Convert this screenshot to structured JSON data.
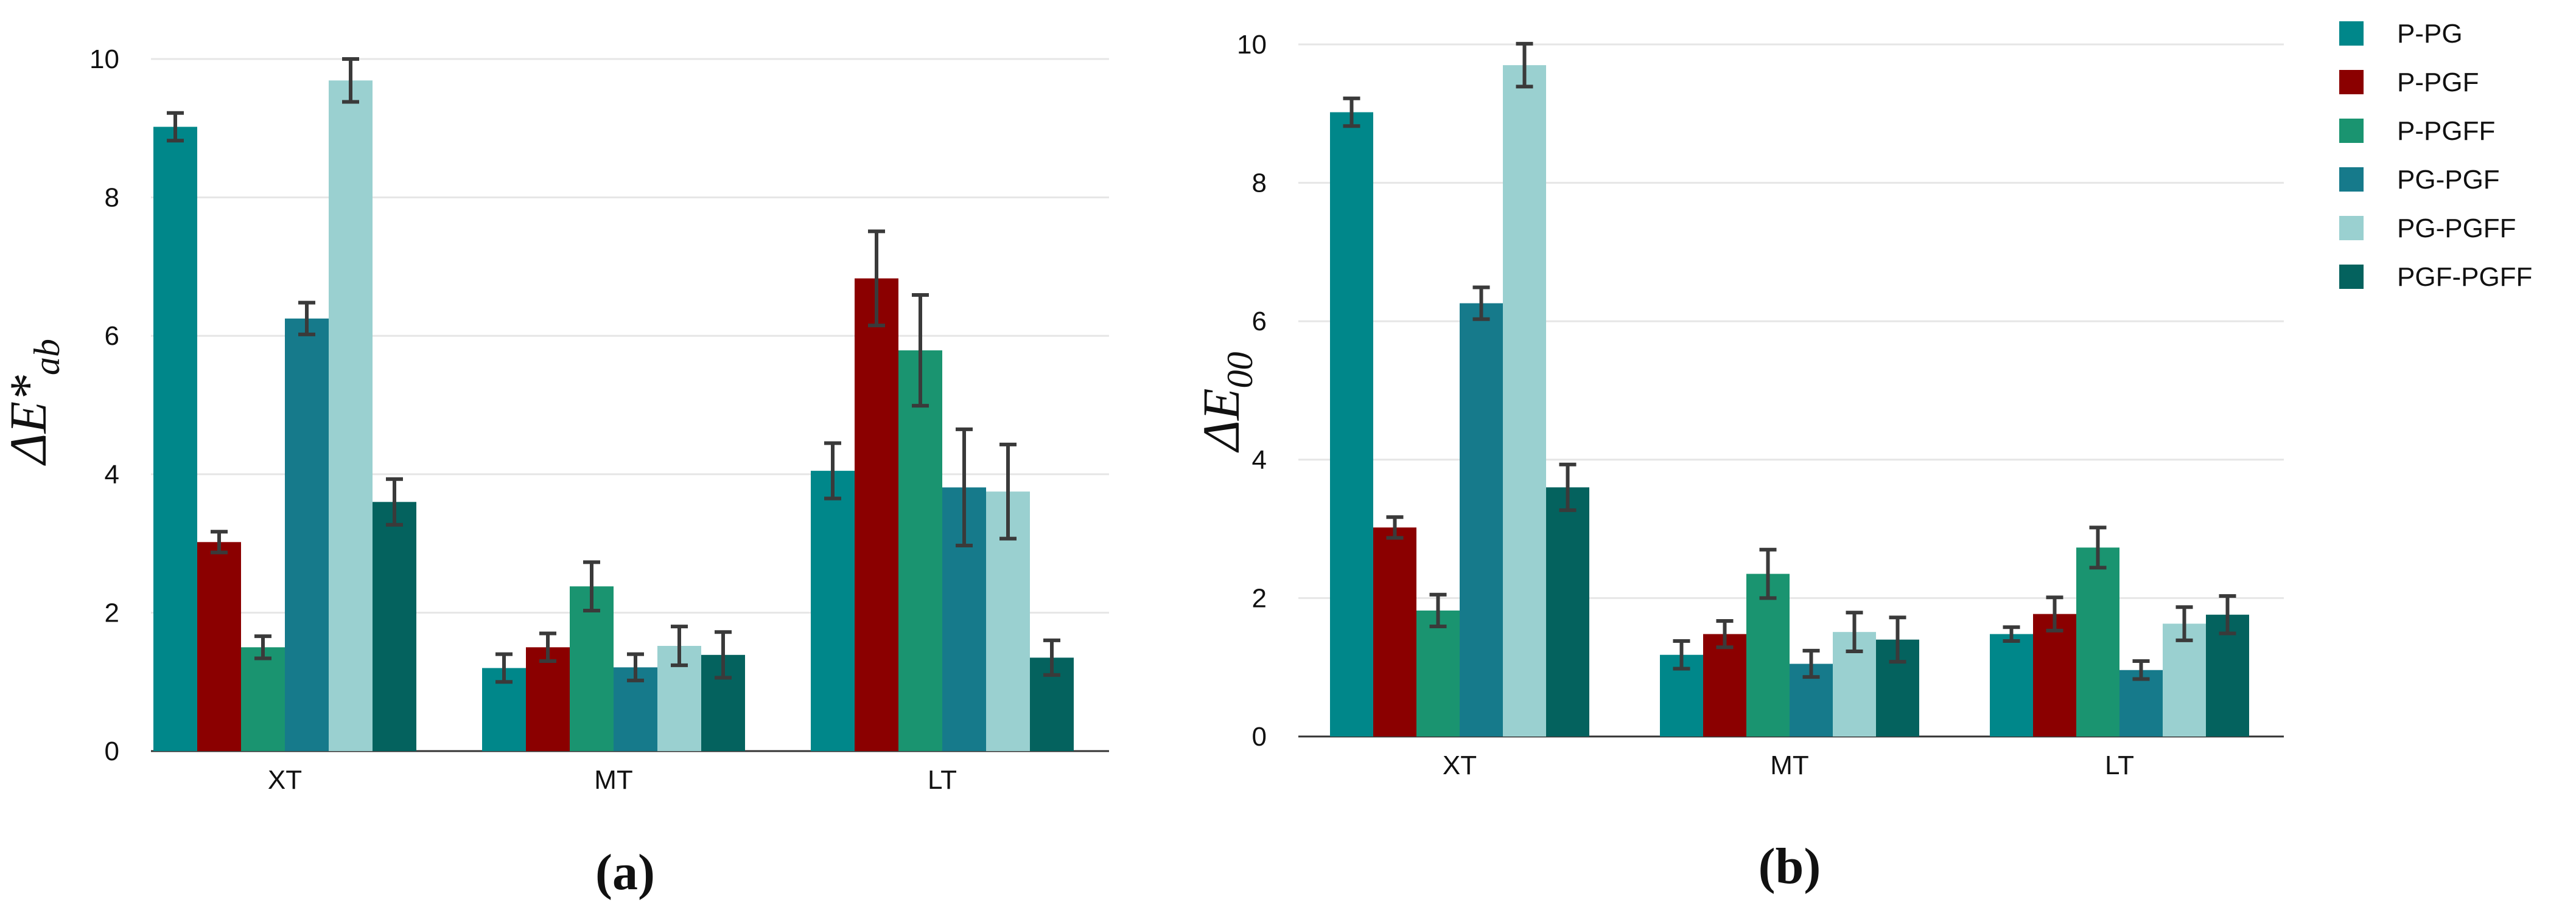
{
  "colors": {
    "P-PG": "#00878a",
    "P-PGF": "#8b0000",
    "P-PGFF": "#1a9470",
    "PG-PGF": "#167a8b",
    "PG-PGFF": "#9ad0d0",
    "PGF-PGFF": "#04625e"
  },
  "legend": [
    "P-PG",
    "P-PGF",
    "P-PGFF",
    "PG-PGF",
    "PG-PGFF",
    "PGF-PGFF"
  ],
  "chart_data": [
    {
      "type": "bar",
      "panel_label": "(a)",
      "title": "",
      "xlabel": "",
      "ylabel_main": "ΔE*",
      "ylabel_sub": "ab",
      "categories": [
        "XT",
        "MT",
        "LT"
      ],
      "ylim": [
        0,
        10
      ],
      "yticks": [
        0,
        2,
        4,
        6,
        8,
        10
      ],
      "grid": true,
      "series": [
        {
          "name": "P-PG",
          "values": [
            9.02,
            1.2,
            4.05
          ],
          "errors": [
            0.2,
            0.2,
            0.4
          ]
        },
        {
          "name": "P-PGF",
          "values": [
            3.02,
            1.5,
            6.83
          ],
          "errors": [
            0.15,
            0.2,
            0.68
          ]
        },
        {
          "name": "P-PGFF",
          "values": [
            1.5,
            2.38,
            5.79
          ],
          "errors": [
            0.16,
            0.35,
            0.8
          ]
        },
        {
          "name": "PG-PGF",
          "values": [
            6.25,
            1.21,
            3.81
          ],
          "errors": [
            0.23,
            0.19,
            0.84
          ]
        },
        {
          "name": "PG-PGFF",
          "values": [
            9.69,
            1.52,
            3.75
          ],
          "errors": [
            0.31,
            0.28,
            0.68
          ]
        },
        {
          "name": "PGF-PGFF",
          "values": [
            3.6,
            1.39,
            1.35
          ],
          "errors": [
            0.33,
            0.33,
            0.25
          ]
        }
      ]
    },
    {
      "type": "bar",
      "panel_label": "(b)",
      "title": "",
      "xlabel": "",
      "ylabel_main": "ΔE",
      "ylabel_sub": "00",
      "categories": [
        "XT",
        "MT",
        "LT"
      ],
      "ylim": [
        0,
        10
      ],
      "yticks": [
        0,
        2,
        4,
        6,
        8,
        10
      ],
      "grid": true,
      "legend_position": "right",
      "series": [
        {
          "name": "P-PG",
          "values": [
            9.02,
            1.18,
            1.48
          ],
          "errors": [
            0.2,
            0.2,
            0.1
          ]
        },
        {
          "name": "P-PGF",
          "values": [
            3.02,
            1.48,
            1.77
          ],
          "errors": [
            0.15,
            0.19,
            0.24
          ]
        },
        {
          "name": "P-PGFF",
          "values": [
            1.82,
            2.35,
            2.73
          ],
          "errors": [
            0.23,
            0.35,
            0.29
          ]
        },
        {
          "name": "PG-PGF",
          "values": [
            6.26,
            1.05,
            0.96
          ],
          "errors": [
            0.23,
            0.19,
            0.13
          ]
        },
        {
          "name": "PG-PGFF",
          "values": [
            9.7,
            1.51,
            1.63
          ],
          "errors": [
            0.31,
            0.28,
            0.24
          ]
        },
        {
          "name": "PGF-PGFF",
          "values": [
            3.6,
            1.4,
            1.76
          ],
          "errors": [
            0.33,
            0.32,
            0.27
          ]
        }
      ]
    }
  ]
}
